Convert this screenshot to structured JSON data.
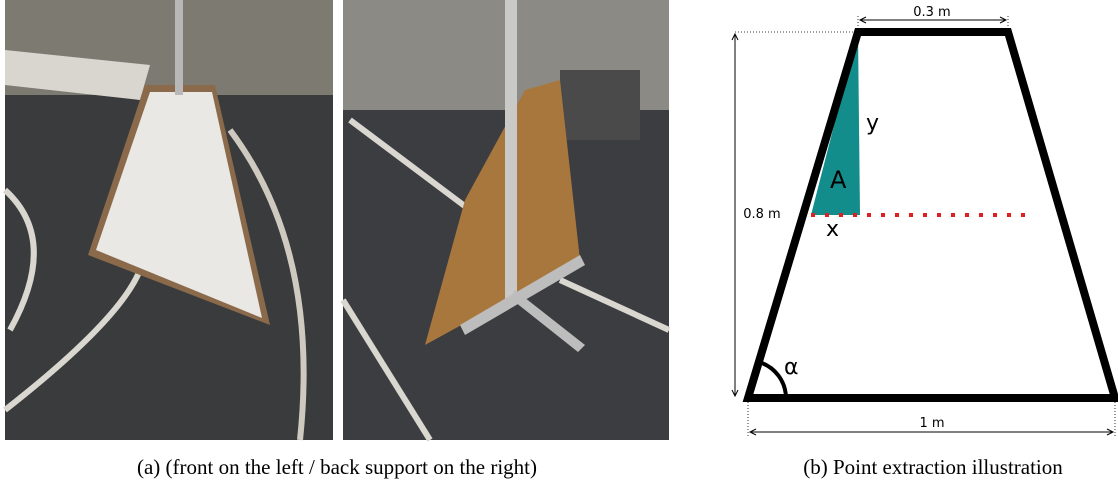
{
  "figure": {
    "panel_a": {
      "caption": "(a) (front on the left / back support on the right)"
    },
    "panel_b": {
      "caption": "(b) Point extraction illustration",
      "labels": {
        "top_width": "0.3 m",
        "height": "0.8 m",
        "bottom_width": "1 m",
        "y": "y",
        "area": "A",
        "x": "x",
        "angle": "α"
      }
    }
  }
}
